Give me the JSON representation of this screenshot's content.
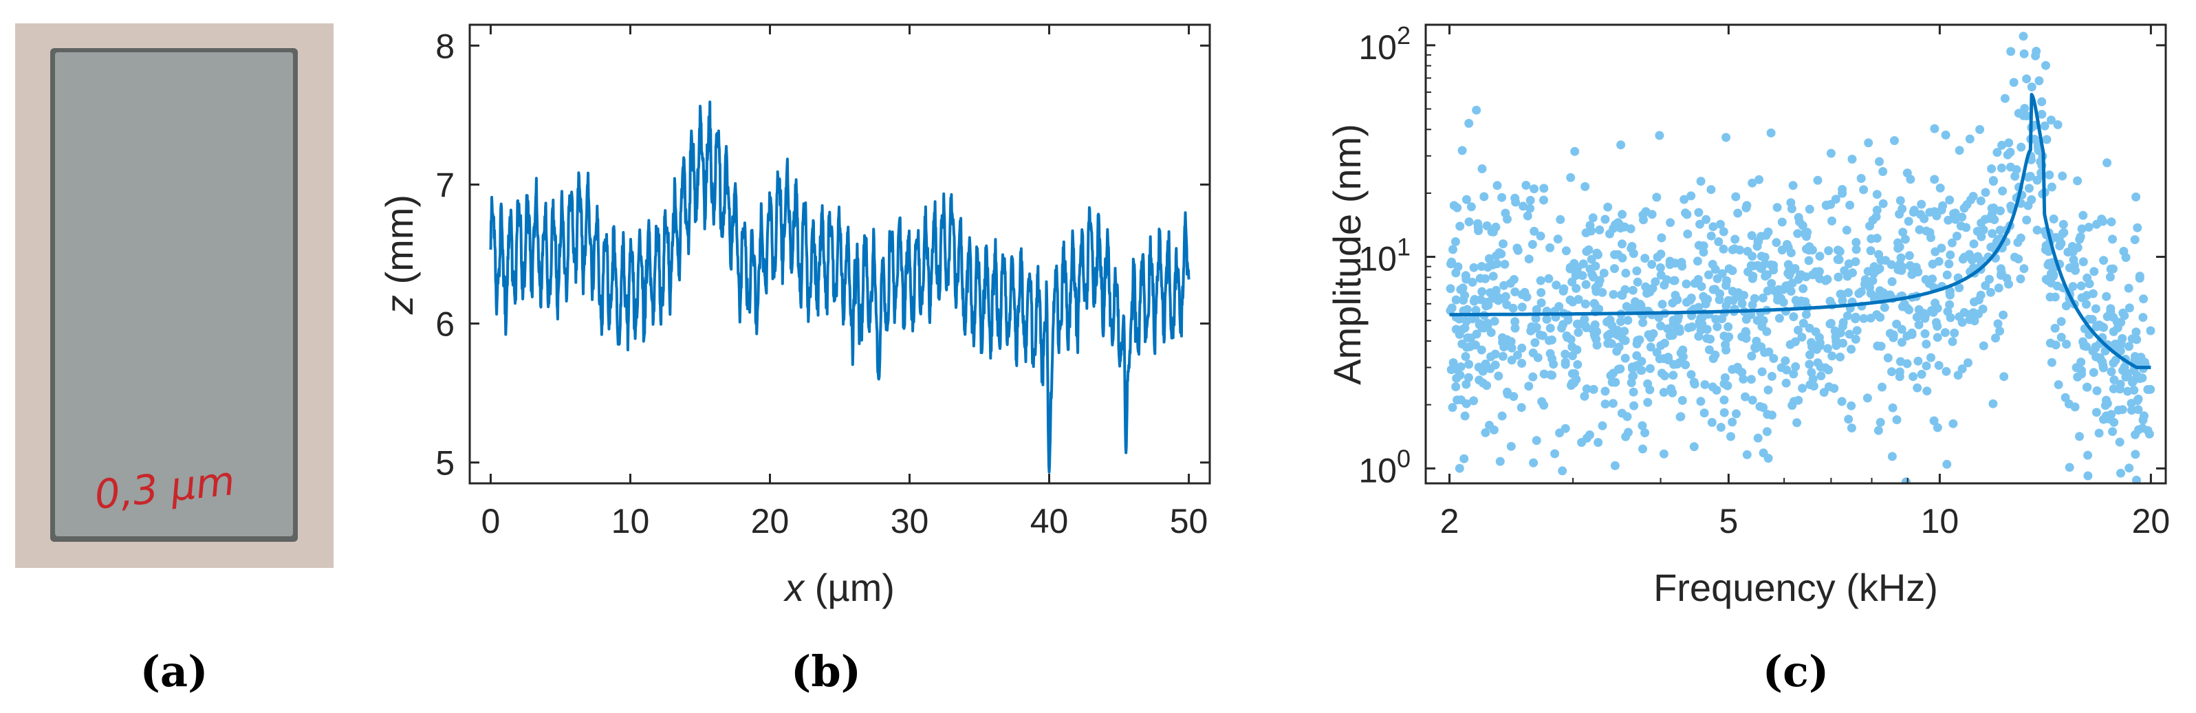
{
  "panel_labels": [
    "(a)",
    "(b)",
    "(c)"
  ],
  "photo": {
    "label_text": "0,3 µm",
    "colors": {
      "background": "#d4c5bc",
      "block": "#9aa1a0",
      "block_light": "#aab1b0",
      "edge": "#5f6362",
      "ink": "#c8262b"
    }
  },
  "chart_data": [
    {
      "type": "line",
      "title": "",
      "xlabel_italic": "x",
      "xlabel_rest": " (µm)",
      "ylabel_italic": "z",
      "ylabel_rest": " (mm)",
      "xlim": [
        -1.5,
        51.5
      ],
      "ylim": [
        4.85,
        8.15
      ],
      "xticks": [
        0,
        10,
        20,
        30,
        40,
        50
      ],
      "yticks": [
        5,
        6,
        7,
        8
      ],
      "color": "#0072bd",
      "anchors": {
        "x": [
          0,
          1,
          2,
          3,
          4,
          5,
          6,
          7,
          8,
          9,
          10,
          11,
          12,
          13,
          14,
          15,
          16,
          17,
          18,
          19,
          20,
          21,
          22,
          23,
          24,
          25,
          26,
          27,
          28,
          29,
          30,
          31,
          32,
          33,
          34,
          35,
          36,
          37,
          38,
          39,
          40,
          41,
          42,
          43,
          44,
          45,
          46,
          47,
          48,
          49,
          50
        ],
        "z": [
          6.55,
          6.4,
          6.55,
          6.6,
          6.45,
          6.5,
          6.7,
          6.65,
          6.35,
          6.3,
          6.25,
          6.3,
          6.4,
          6.55,
          6.9,
          7.15,
          7.1,
          6.85,
          6.45,
          6.3,
          6.6,
          6.8,
          6.6,
          6.4,
          6.5,
          6.45,
          6.2,
          6.25,
          6.15,
          6.4,
          6.3,
          6.4,
          6.5,
          6.6,
          6.25,
          6.2,
          6.2,
          6.15,
          6.1,
          6.0,
          5.95,
          6.2,
          6.25,
          6.5,
          6.3,
          6.0,
          6.05,
          6.2,
          6.3,
          6.15,
          6.45
        ]
      },
      "ripple_amplitude": 0.3,
      "dips": [
        {
          "x": 9.2,
          "z": 5.85
        },
        {
          "x": 27.8,
          "z": 5.6
        },
        {
          "x": 40.0,
          "z": 4.93
        },
        {
          "x": 45.5,
          "z": 5.07
        }
      ]
    },
    {
      "type": "scatter",
      "title": "",
      "xscale": "log",
      "yscale": "log",
      "xlabel": "Frequency (kHz)",
      "ylabel": "Amplitude (nm)",
      "xlim": [
        1.85,
        21.0
      ],
      "ylim": [
        0.85,
        125
      ],
      "xticks": [
        2,
        5,
        10,
        20
      ],
      "yticks": [
        {
          "value": 1,
          "base": "10",
          "exp": "0"
        },
        {
          "value": 10,
          "base": "10",
          "exp": "1"
        },
        {
          "value": 100,
          "base": "10",
          "exp": "2"
        }
      ],
      "points_color": "#7cc4f0",
      "fit_color": "#0072bd",
      "fit": {
        "baseline": 5.3,
        "resonance_khz": 13.5,
        "peak": 32,
        "q": 20,
        "floor": 3.0
      },
      "n_points": 1400
    }
  ]
}
